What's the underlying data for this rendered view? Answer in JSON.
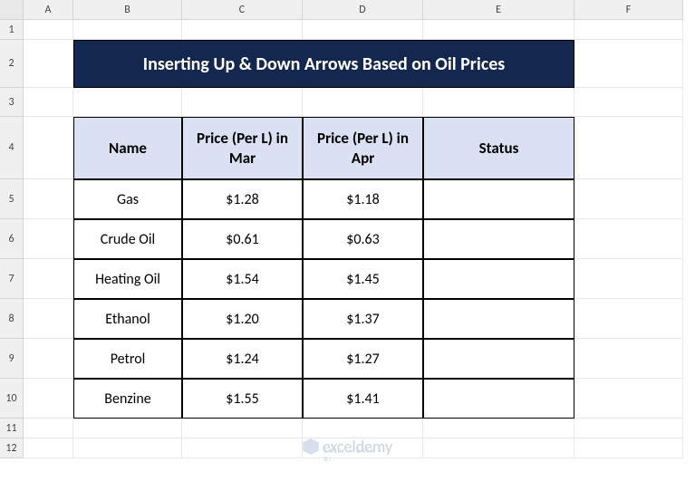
{
  "grid": {
    "columns": [
      "A",
      "B",
      "C",
      "D",
      "E",
      "F"
    ],
    "rows": [
      "1",
      "2",
      "3",
      "4",
      "5",
      "6",
      "7",
      "8",
      "9",
      "10",
      "11",
      "12"
    ]
  },
  "title": "Inserting Up & Down Arrows Based on Oil Prices",
  "headers": {
    "name": "Name",
    "mar": "Price (Per L) in Mar",
    "apr": "Price (Per L) in Apr",
    "status": "Status"
  },
  "data": [
    {
      "name": "Gas",
      "mar": "$1.28",
      "apr": "$1.18",
      "status": ""
    },
    {
      "name": "Crude Oil",
      "mar": "$0.61",
      "apr": "$0.63",
      "status": ""
    },
    {
      "name": "Heating Oil",
      "mar": "$1.54",
      "apr": "$1.45",
      "status": ""
    },
    {
      "name": "Ethanol",
      "mar": "$1.20",
      "apr": "$1.37",
      "status": ""
    },
    {
      "name": "Petrol",
      "mar": "$1.24",
      "apr": "$1.27",
      "status": ""
    },
    {
      "name": "Benzine",
      "mar": "$1.55",
      "apr": "$1.41",
      "status": ""
    }
  ],
  "watermark": {
    "name": "exceldemy",
    "sub": "EXCEL • DATA • BI"
  },
  "colors": {
    "banner_bg": "#14274e",
    "banner_fg": "#ffffff",
    "header_bg": "#d9e1f2",
    "grid_line": "#e8e8e8",
    "border": "#000000",
    "watermark": "#c8d2e0"
  }
}
